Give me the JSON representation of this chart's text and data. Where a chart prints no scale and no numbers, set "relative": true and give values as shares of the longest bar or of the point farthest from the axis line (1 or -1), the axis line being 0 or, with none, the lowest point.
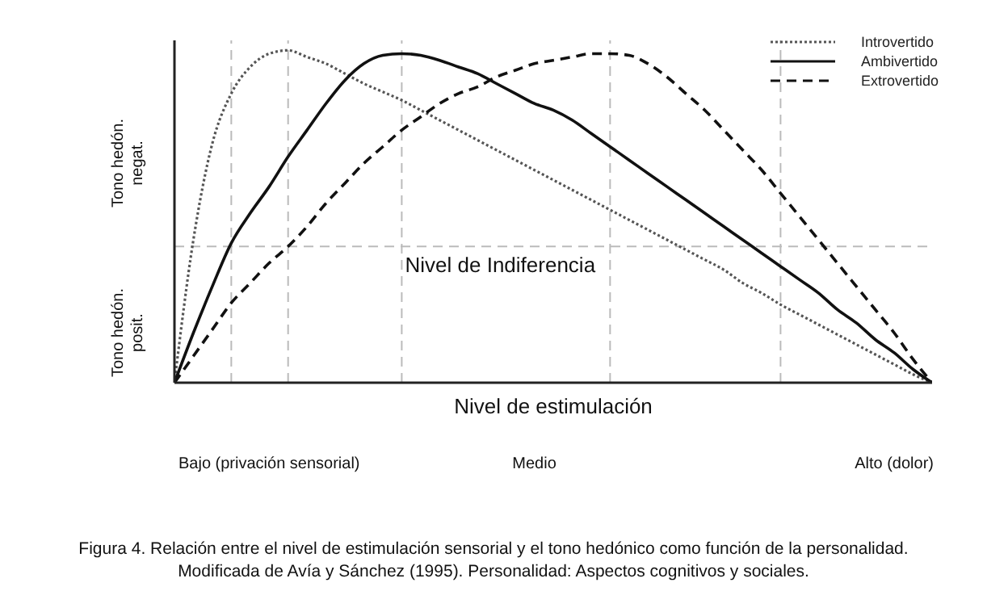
{
  "chart_data": {
    "type": "line",
    "relative": true,
    "xlabel": "Nivel de estimulación",
    "categories": [
      null,
      null,
      null,
      null,
      null,
      "Bajo (privación sensorial)",
      null,
      null,
      null,
      null,
      null,
      null,
      null,
      null,
      null,
      null,
      null,
      null,
      null,
      "Medio",
      null,
      null,
      null,
      null,
      null,
      null,
      null,
      null,
      null,
      null,
      null,
      null,
      null,
      null,
      null,
      null,
      null,
      null,
      "Alto (dolor)",
      null,
      null
    ],
    "series": [
      {
        "name": "Introvertido",
        "color": "#555555",
        "line_style": "dotted",
        "values": [
          0,
          0.43,
          0.72,
          0.87,
          0.95,
          0.99,
          1.0,
          0.98,
          0.96,
          0.93,
          0.9,
          0.875,
          0.85,
          0.82,
          0.79,
          0.76,
          0.73,
          0.7,
          0.67,
          0.64,
          0.61,
          0.58,
          0.55,
          0.52,
          0.49,
          0.46,
          0.43,
          0.4,
          0.37,
          0.34,
          0.3,
          0.27,
          0.235,
          0.205,
          0.175,
          0.145,
          0.115,
          0.085,
          0.055,
          0.025,
          0
        ]
      },
      {
        "name": "Ambivertido",
        "color": "#111111",
        "line_style": "solid",
        "values": [
          0,
          0.15,
          0.29,
          0.42,
          0.51,
          0.59,
          0.68,
          0.76,
          0.84,
          0.91,
          0.96,
          0.985,
          0.99,
          0.985,
          0.97,
          0.95,
          0.93,
          0.9,
          0.87,
          0.84,
          0.82,
          0.79,
          0.75,
          0.71,
          0.67,
          0.63,
          0.59,
          0.55,
          0.51,
          0.47,
          0.43,
          0.39,
          0.35,
          0.31,
          0.27,
          0.22,
          0.18,
          0.13,
          0.09,
          0.04,
          0
        ]
      },
      {
        "name": "Extrovertido",
        "color": "#111111",
        "line_style": "dashed",
        "values": [
          0,
          0.08,
          0.16,
          0.24,
          0.3,
          0.36,
          0.41,
          0.47,
          0.54,
          0.6,
          0.66,
          0.71,
          0.76,
          0.8,
          0.84,
          0.87,
          0.89,
          0.92,
          0.94,
          0.96,
          0.97,
          0.98,
          0.99,
          0.99,
          0.985,
          0.96,
          0.92,
          0.87,
          0.82,
          0.76,
          0.7,
          0.64,
          0.57,
          0.5,
          0.43,
          0.36,
          0.29,
          0.22,
          0.15,
          0.07,
          0
        ]
      }
    ],
    "ref_lines": [
      {
        "axis": "y",
        "value": 0.41,
        "label": "Nivel de Indiferencia",
        "color": "#bbbbbb",
        "line_style": "dashed"
      }
    ],
    "annotations": [
      "Tono hedón. negat.",
      "Tono hedón. posit.",
      "Figura 4. Relación entre el nivel de estimulación sensorial y el tono hedónico como  función de la personalidad.",
      "Modificada de Avía y Sánchez (1995). Personalidad: Aspectos cognitivos y sociales."
    ],
    "legend": "top right",
    "grid": "x"
  }
}
